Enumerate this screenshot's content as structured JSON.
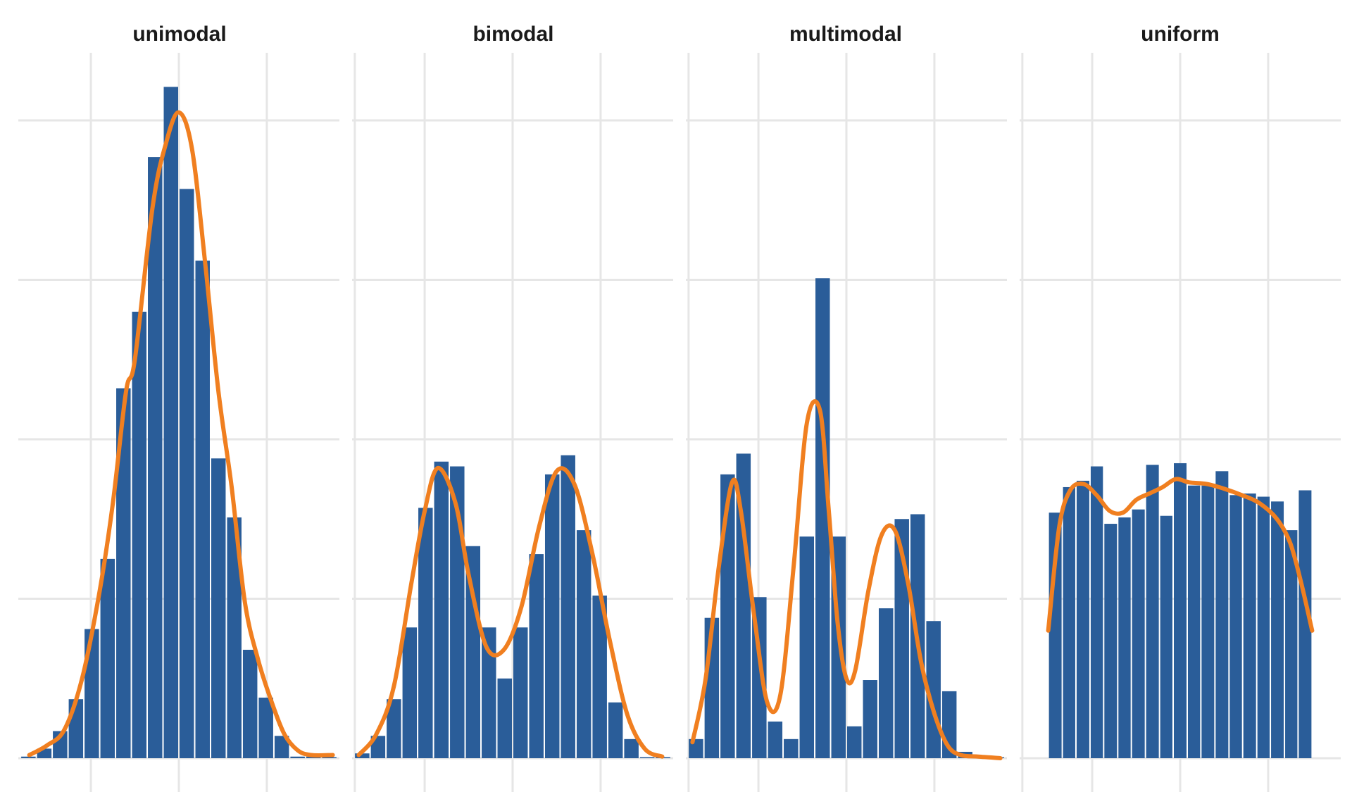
{
  "chart_data": [
    {
      "type": "bar",
      "title": "unimodal",
      "xlabel": "",
      "ylabel": "",
      "xlim": [
        -3.65,
        3.65
      ],
      "ylim": [
        0,
        4.3
      ],
      "x_gridlines": [
        -2,
        0,
        2,
        4
      ],
      "y_gridlines": [
        0,
        1,
        2,
        3,
        4
      ],
      "grid": true,
      "bar_color": "#2a5d99",
      "line_color": "#f07f20",
      "bins": [
        {
          "x0": -3.6,
          "x1": -3.24,
          "value": 0.01
        },
        {
          "x0": -3.24,
          "x1": -2.88,
          "value": 0.06
        },
        {
          "x0": -2.88,
          "x1": -2.52,
          "value": 0.17
        },
        {
          "x0": -2.52,
          "x1": -2.16,
          "value": 0.37
        },
        {
          "x0": -2.16,
          "x1": -1.8,
          "value": 0.81
        },
        {
          "x0": -1.8,
          "x1": -1.44,
          "value": 1.25
        },
        {
          "x0": -1.44,
          "x1": -1.08,
          "value": 2.32
        },
        {
          "x0": -1.08,
          "x1": -0.72,
          "value": 2.8
        },
        {
          "x0": -0.72,
          "x1": -0.36,
          "value": 3.77
        },
        {
          "x0": -0.36,
          "x1": 0.0,
          "value": 4.21
        },
        {
          "x0": 0.0,
          "x1": 0.36,
          "value": 3.57
        },
        {
          "x0": 0.36,
          "x1": 0.72,
          "value": 3.12
        },
        {
          "x0": 0.72,
          "x1": 1.08,
          "value": 1.88
        },
        {
          "x0": 1.08,
          "x1": 1.44,
          "value": 1.51
        },
        {
          "x0": 1.44,
          "x1": 1.8,
          "value": 0.68
        },
        {
          "x0": 1.8,
          "x1": 2.16,
          "value": 0.38
        },
        {
          "x0": 2.16,
          "x1": 2.52,
          "value": 0.14
        },
        {
          "x0": 2.52,
          "x1": 2.88,
          "value": 0.01
        },
        {
          "x0": 2.88,
          "x1": 3.24,
          "value": 0.01
        },
        {
          "x0": 3.24,
          "x1": 3.6,
          "value": 0.005
        }
      ],
      "density": {
        "x": [
          -3.4,
          -3.0,
          -2.6,
          -2.2,
          -1.8,
          -1.5,
          -1.2,
          -1.0,
          -0.6,
          -0.3,
          0.0,
          0.3,
          0.6,
          0.9,
          1.2,
          1.5,
          1.8,
          2.1,
          2.4,
          2.7,
          3.0,
          3.5
        ],
        "y": [
          0.02,
          0.08,
          0.18,
          0.5,
          1.05,
          1.6,
          2.3,
          2.5,
          3.45,
          3.85,
          4.05,
          3.82,
          3.1,
          2.3,
          1.7,
          0.98,
          0.62,
          0.36,
          0.15,
          0.05,
          0.02,
          0.02
        ]
      }
    },
    {
      "type": "bar",
      "title": "bimodal",
      "xlabel": "",
      "ylabel": "",
      "xlim": [
        -3.65,
        3.65
      ],
      "ylim": [
        0,
        4.3
      ],
      "x_gridlines": [
        -2,
        0,
        2,
        4
      ],
      "y_gridlines": [
        0,
        1,
        2,
        3,
        4
      ],
      "grid": true,
      "bar_color": "#2a5d99",
      "line_color": "#f07f20",
      "bins": [
        {
          "x0": -3.6,
          "x1": -3.24,
          "value": 0.03
        },
        {
          "x0": -3.24,
          "x1": -2.88,
          "value": 0.14
        },
        {
          "x0": -2.88,
          "x1": -2.52,
          "value": 0.37
        },
        {
          "x0": -2.52,
          "x1": -2.16,
          "value": 0.82
        },
        {
          "x0": -2.16,
          "x1": -1.8,
          "value": 1.57
        },
        {
          "x0": -1.8,
          "x1": -1.44,
          "value": 1.86
        },
        {
          "x0": -1.44,
          "x1": -1.08,
          "value": 1.83
        },
        {
          "x0": -1.08,
          "x1": -0.72,
          "value": 1.33
        },
        {
          "x0": -0.72,
          "x1": -0.36,
          "value": 0.82
        },
        {
          "x0": -0.36,
          "x1": 0.0,
          "value": 0.5
        },
        {
          "x0": 0.0,
          "x1": 0.36,
          "value": 0.82
        },
        {
          "x0": 0.36,
          "x1": 0.72,
          "value": 1.28
        },
        {
          "x0": 0.72,
          "x1": 1.08,
          "value": 1.78
        },
        {
          "x0": 1.08,
          "x1": 1.44,
          "value": 1.9
        },
        {
          "x0": 1.44,
          "x1": 1.8,
          "value": 1.43
        },
        {
          "x0": 1.8,
          "x1": 2.16,
          "value": 1.02
        },
        {
          "x0": 2.16,
          "x1": 2.52,
          "value": 0.35
        },
        {
          "x0": 2.52,
          "x1": 2.88,
          "value": 0.12
        },
        {
          "x0": 2.88,
          "x1": 3.24,
          "value": 0.005
        },
        {
          "x0": 3.24,
          "x1": 3.6,
          "value": 0.0
        }
      ],
      "density": {
        "x": [
          -3.5,
          -3.1,
          -2.7,
          -2.3,
          -2.0,
          -1.7,
          -1.3,
          -1.0,
          -0.6,
          -0.2,
          0.2,
          0.6,
          1.0,
          1.4,
          1.8,
          2.2,
          2.6,
          3.0,
          3.4
        ],
        "y": [
          0.02,
          0.15,
          0.45,
          1.1,
          1.55,
          1.82,
          1.6,
          1.15,
          0.7,
          0.68,
          0.95,
          1.45,
          1.8,
          1.72,
          1.3,
          0.75,
          0.28,
          0.06,
          0.01
        ]
      }
    },
    {
      "type": "bar",
      "title": "multimodal",
      "xlabel": "",
      "ylabel": "",
      "xlim": [
        -3.65,
        3.65
      ],
      "ylim": [
        0,
        4.3
      ],
      "x_gridlines": [
        -2,
        0,
        2,
        4
      ],
      "y_gridlines": [
        0,
        1,
        2,
        3,
        4
      ],
      "grid": true,
      "bar_color": "#2a5d99",
      "line_color": "#f07f20",
      "bins": [
        {
          "x0": -3.6,
          "x1": -3.24,
          "value": 0.12
        },
        {
          "x0": -3.24,
          "x1": -2.88,
          "value": 0.88
        },
        {
          "x0": -2.88,
          "x1": -2.52,
          "value": 1.78
        },
        {
          "x0": -2.52,
          "x1": -2.16,
          "value": 1.91
        },
        {
          "x0": -2.16,
          "x1": -1.8,
          "value": 1.01
        },
        {
          "x0": -1.8,
          "x1": -1.44,
          "value": 0.23
        },
        {
          "x0": -1.44,
          "x1": -1.08,
          "value": 0.12
        },
        {
          "x0": -1.08,
          "x1": -0.72,
          "value": 1.39
        },
        {
          "x0": -0.72,
          "x1": -0.36,
          "value": 3.01
        },
        {
          "x0": -0.36,
          "x1": 0.0,
          "value": 1.39
        },
        {
          "x0": 0.0,
          "x1": 0.36,
          "value": 0.2
        },
        {
          "x0": 0.36,
          "x1": 0.72,
          "value": 0.49
        },
        {
          "x0": 0.72,
          "x1": 1.08,
          "value": 0.94
        },
        {
          "x0": 1.08,
          "x1": 1.44,
          "value": 1.5
        },
        {
          "x0": 1.44,
          "x1": 1.8,
          "value": 1.53
        },
        {
          "x0": 1.8,
          "x1": 2.16,
          "value": 0.86
        },
        {
          "x0": 2.16,
          "x1": 2.52,
          "value": 0.42
        },
        {
          "x0": 2.52,
          "x1": 2.88,
          "value": 0.04
        },
        {
          "x0": 2.88,
          "x1": 3.24,
          "value": 0.005
        },
        {
          "x0": 3.24,
          "x1": 3.6,
          "value": 0.0
        }
      ],
      "density": {
        "x": [
          -3.5,
          -3.2,
          -2.9,
          -2.6,
          -2.4,
          -2.1,
          -1.8,
          -1.5,
          -1.2,
          -0.9,
          -0.6,
          -0.4,
          -0.2,
          0.0,
          0.2,
          0.5,
          0.8,
          1.1,
          1.4,
          1.7,
          2.0,
          2.3,
          2.6,
          3.0,
          3.5
        ],
        "y": [
          0.1,
          0.5,
          1.2,
          1.73,
          1.55,
          0.9,
          0.35,
          0.4,
          1.2,
          2.1,
          2.18,
          1.55,
          0.85,
          0.5,
          0.55,
          1.05,
          1.4,
          1.43,
          1.1,
          0.6,
          0.28,
          0.08,
          0.02,
          0.01,
          0.0
        ]
      }
    },
    {
      "type": "bar",
      "title": "uniform",
      "xlabel": "",
      "ylabel": "",
      "xlim": [
        -3.65,
        3.65
      ],
      "ylim": [
        0,
        4.3
      ],
      "x_gridlines": [
        -2,
        0,
        2,
        4
      ],
      "y_gridlines": [
        0,
        1,
        2,
        3,
        4
      ],
      "grid": true,
      "bar_color": "#2a5d99",
      "line_color": "#f07f20",
      "bins": [
        {
          "x0": -3.0,
          "x1": -2.68,
          "value": 1.54
        },
        {
          "x0": -2.68,
          "x1": -2.37,
          "value": 1.7
        },
        {
          "x0": -2.37,
          "x1": -2.05,
          "value": 1.74
        },
        {
          "x0": -2.05,
          "x1": -1.74,
          "value": 1.83
        },
        {
          "x0": -1.74,
          "x1": -1.42,
          "value": 1.47
        },
        {
          "x0": -1.42,
          "x1": -1.11,
          "value": 1.51
        },
        {
          "x0": -1.11,
          "x1": -0.79,
          "value": 1.56
        },
        {
          "x0": -0.79,
          "x1": -0.47,
          "value": 1.84
        },
        {
          "x0": -0.47,
          "x1": -0.16,
          "value": 1.52
        },
        {
          "x0": -0.16,
          "x1": 0.16,
          "value": 1.85
        },
        {
          "x0": 0.16,
          "x1": 0.47,
          "value": 1.71
        },
        {
          "x0": 0.47,
          "x1": 0.79,
          "value": 1.71
        },
        {
          "x0": 0.79,
          "x1": 1.11,
          "value": 1.8
        },
        {
          "x0": 1.11,
          "x1": 1.42,
          "value": 1.65
        },
        {
          "x0": 1.42,
          "x1": 1.74,
          "value": 1.66
        },
        {
          "x0": 1.74,
          "x1": 2.05,
          "value": 1.64
        },
        {
          "x0": 2.05,
          "x1": 2.37,
          "value": 1.61
        },
        {
          "x0": 2.37,
          "x1": 2.68,
          "value": 1.43
        },
        {
          "x0": 2.68,
          "x1": 3.0,
          "value": 1.68
        }
      ],
      "density": {
        "x": [
          -3.0,
          -2.75,
          -2.5,
          -2.2,
          -1.9,
          -1.6,
          -1.3,
          -1.0,
          -0.7,
          -0.4,
          -0.1,
          0.2,
          0.6,
          1.0,
          1.4,
          1.8,
          2.2,
          2.5,
          2.75,
          3.0
        ],
        "y": [
          0.8,
          1.45,
          1.68,
          1.72,
          1.65,
          1.55,
          1.54,
          1.62,
          1.66,
          1.7,
          1.75,
          1.73,
          1.72,
          1.69,
          1.65,
          1.6,
          1.5,
          1.35,
          1.1,
          0.8
        ]
      }
    }
  ]
}
